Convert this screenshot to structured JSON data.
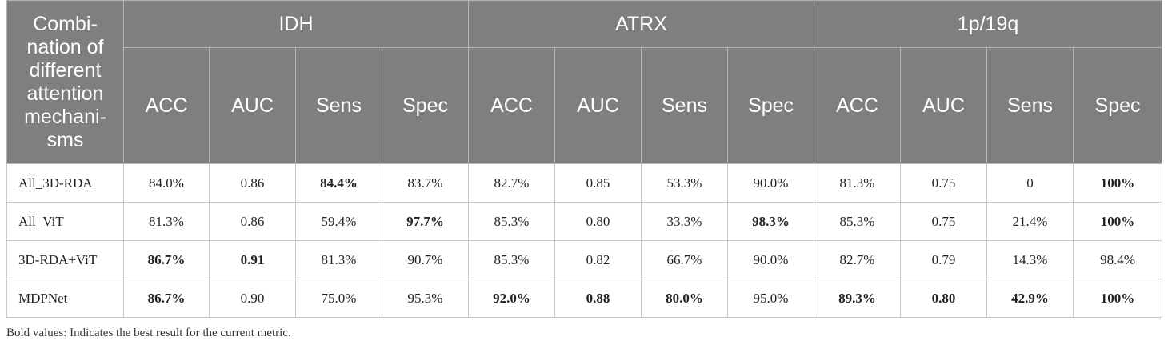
{
  "table": {
    "stub_header": "Combi-nation of different attention mechani-sms",
    "groups": [
      "IDH",
      "ATRX",
      "1p/19q"
    ],
    "metrics": [
      "ACC",
      "AUC",
      "Sens",
      "Spec",
      "ACC",
      "AUC",
      "Sens",
      "Spec",
      "ACC",
      "AUC",
      "Sens",
      "Spec"
    ],
    "rows": [
      {
        "label": "All_3D-RDA",
        "cells": [
          {
            "v": "84.0%",
            "bold": false
          },
          {
            "v": "0.86",
            "bold": false
          },
          {
            "v": "84.4%",
            "bold": true
          },
          {
            "v": "83.7%",
            "bold": false
          },
          {
            "v": "82.7%",
            "bold": false
          },
          {
            "v": "0.85",
            "bold": false
          },
          {
            "v": "53.3%",
            "bold": false
          },
          {
            "v": "90.0%",
            "bold": false
          },
          {
            "v": "81.3%",
            "bold": false
          },
          {
            "v": "0.75",
            "bold": false
          },
          {
            "v": "0",
            "bold": false
          },
          {
            "v": "100%",
            "bold": true
          }
        ]
      },
      {
        "label": "All_ViT",
        "cells": [
          {
            "v": "81.3%",
            "bold": false
          },
          {
            "v": "0.86",
            "bold": false
          },
          {
            "v": "59.4%",
            "bold": false
          },
          {
            "v": "97.7%",
            "bold": true
          },
          {
            "v": "85.3%",
            "bold": false
          },
          {
            "v": "0.80",
            "bold": false
          },
          {
            "v": "33.3%",
            "bold": false
          },
          {
            "v": "98.3%",
            "bold": true
          },
          {
            "v": "85.3%",
            "bold": false
          },
          {
            "v": "0.75",
            "bold": false
          },
          {
            "v": "21.4%",
            "bold": false
          },
          {
            "v": "100%",
            "bold": true
          }
        ]
      },
      {
        "label": "3D-RDA+ViT",
        "cells": [
          {
            "v": "86.7%",
            "bold": true
          },
          {
            "v": "0.91",
            "bold": true
          },
          {
            "v": "81.3%",
            "bold": false
          },
          {
            "v": "90.7%",
            "bold": false
          },
          {
            "v": "85.3%",
            "bold": false
          },
          {
            "v": "0.82",
            "bold": false
          },
          {
            "v": "66.7%",
            "bold": false
          },
          {
            "v": "90.0%",
            "bold": false
          },
          {
            "v": "82.7%",
            "bold": false
          },
          {
            "v": "0.79",
            "bold": false
          },
          {
            "v": "14.3%",
            "bold": false
          },
          {
            "v": "98.4%",
            "bold": false
          }
        ]
      },
      {
        "label": "MDPNet",
        "cells": [
          {
            "v": "86.7%",
            "bold": true
          },
          {
            "v": "0.90",
            "bold": false
          },
          {
            "v": "75.0%",
            "bold": false
          },
          {
            "v": "95.3%",
            "bold": false
          },
          {
            "v": "92.0%",
            "bold": true
          },
          {
            "v": "0.88",
            "bold": true
          },
          {
            "v": "80.0%",
            "bold": true
          },
          {
            "v": "95.0%",
            "bold": false
          },
          {
            "v": "89.3%",
            "bold": true
          },
          {
            "v": "0.80",
            "bold": true
          },
          {
            "v": "42.9%",
            "bold": true
          },
          {
            "v": "100%",
            "bold": true
          }
        ]
      }
    ]
  },
  "footnote": "Bold values: Indicates the best result for the current metric."
}
